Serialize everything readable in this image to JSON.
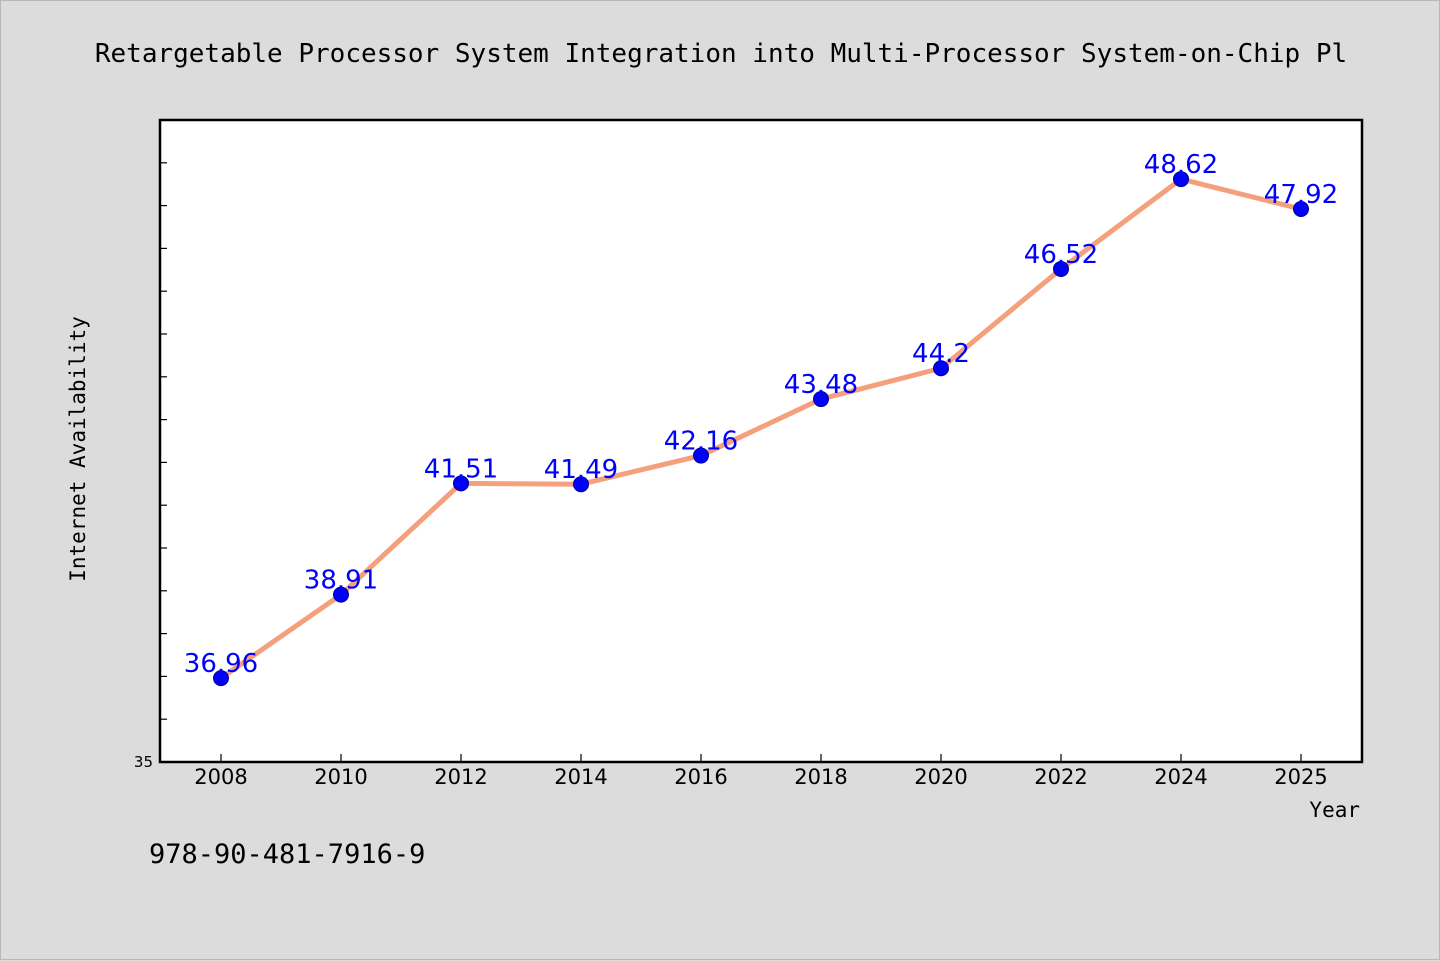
{
  "chart_data": {
    "type": "line",
    "title": "Retargetable Processor System Integration into Multi-Processor System-on-Chip Pl",
    "xlabel": "Year",
    "ylabel": "Internet Availability",
    "categories": [
      "2008",
      "2010",
      "2012",
      "2014",
      "2016",
      "2018",
      "2020",
      "2022",
      "2024",
      "2025"
    ],
    "values": [
      36.96,
      38.91,
      41.51,
      41.49,
      42.16,
      43.48,
      44.2,
      46.52,
      48.62,
      47.92
    ],
    "data_labels": [
      "36.96",
      "38.91",
      "41.51",
      "41.49",
      "42.16",
      "43.48",
      "44.2",
      "46.52",
      "48.62",
      "47.92"
    ],
    "ylim": [
      35,
      50
    ],
    "y_min_label": "35",
    "grid": false,
    "legend": "none",
    "line_color": "#f4a07c",
    "marker_color": "#0000ff",
    "label_color": "#0000ff"
  },
  "footer": {
    "isbn": "978-90-481-7916-9"
  }
}
